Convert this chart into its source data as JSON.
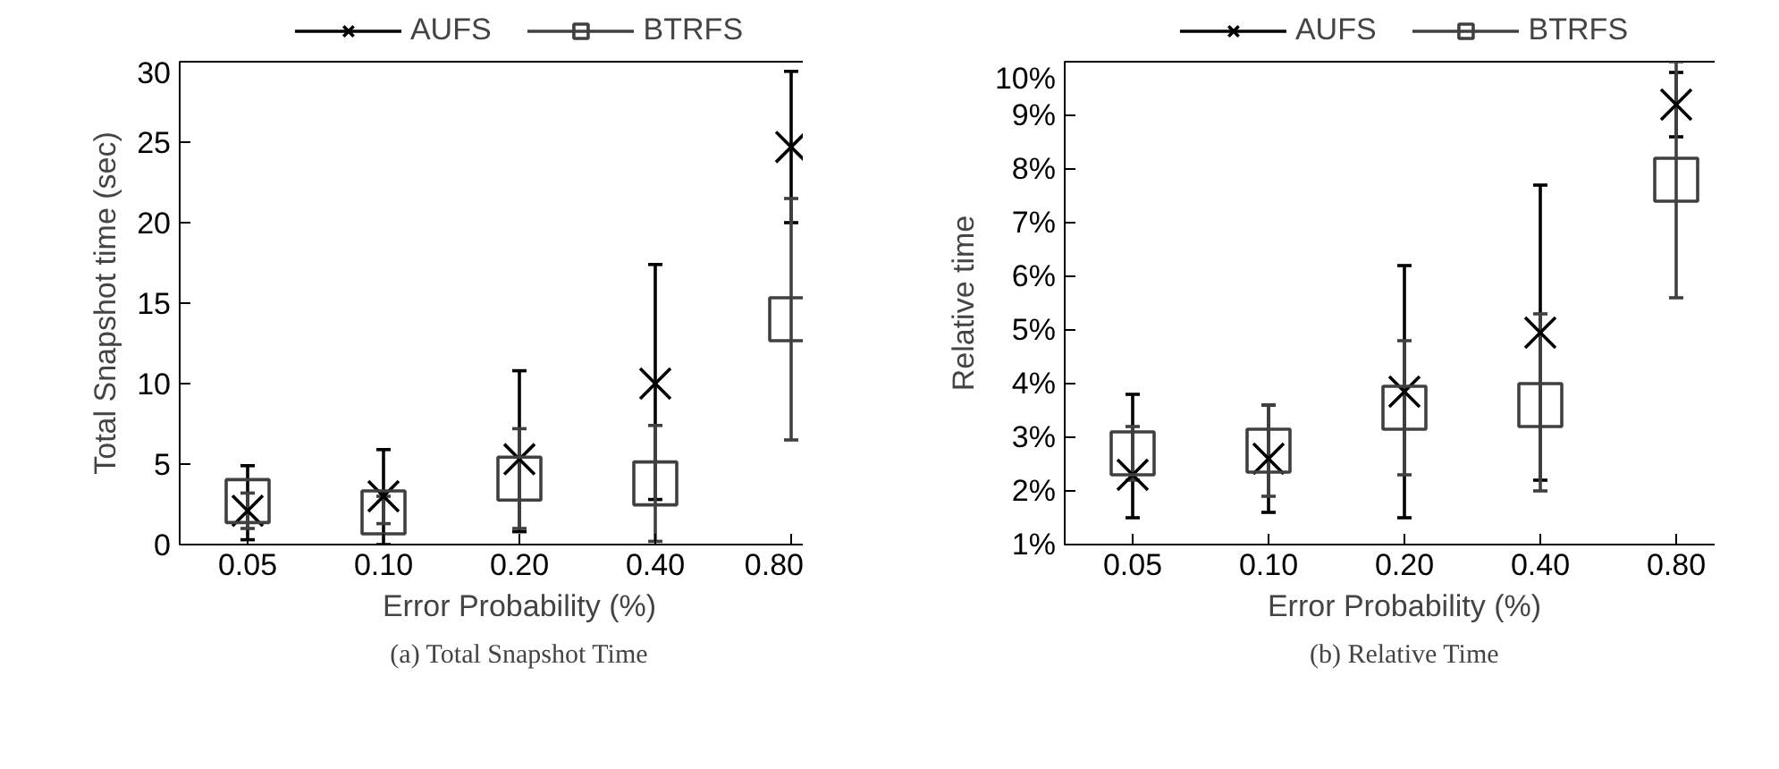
{
  "chart_data": [
    {
      "type": "scatter",
      "xlabel": "Error Probability (%)",
      "ylabel": "Total Snapshot time (sec)",
      "categories": [
        "0.05",
        "0.10",
        "0.20",
        "0.40",
        "0.80"
      ],
      "ylim": [
        0,
        30
      ],
      "yticks": [
        0,
        5,
        10,
        15,
        20,
        25,
        30
      ],
      "grid": false,
      "legend": "top",
      "annotations": [
        "(a) Total Snapshot Time"
      ],
      "series": [
        {
          "name": "AUFS",
          "color": "#000000",
          "marker": "cross",
          "values": [
            2.1,
            3.0,
            5.3,
            10.0,
            24.7
          ],
          "errors": [
            [
              0.3,
              4.9
            ],
            [
              0,
              5.9
            ],
            [
              0.8,
              10.8
            ],
            [
              2.8,
              17.4
            ],
            [
              20.0,
              29.4
            ]
          ]
        },
        {
          "name": "BTRFS",
          "color": "#404040",
          "marker": "square",
          "values": [
            2.7,
            2.0,
            4.1,
            3.8,
            14.0
          ],
          "errors": [
            [
              1.0,
              3.2
            ],
            [
              1.3,
              3.0
            ],
            [
              1.0,
              7.2
            ],
            [
              0.2,
              7.4
            ],
            [
              6.5,
              21.5
            ]
          ]
        }
      ]
    },
    {
      "type": "scatter",
      "xlabel": "Error Probability (%)",
      "ylabel": "Relative time",
      "categories": [
        "0.05",
        "0.10",
        "0.20",
        "0.40",
        "0.80"
      ],
      "ylim": [
        1,
        10
      ],
      "yticks": [
        {
          "value": 1,
          "label": "1%"
        },
        {
          "value": 2,
          "label": "2%"
        },
        {
          "value": 3,
          "label": "3%"
        },
        {
          "value": 4,
          "label": "4%"
        },
        {
          "value": 5,
          "label": "5%"
        },
        {
          "value": 6,
          "label": "6%"
        },
        {
          "value": 7,
          "label": "7%"
        },
        {
          "value": 8,
          "label": "8%"
        },
        {
          "value": 9,
          "label": "9%"
        },
        {
          "value": 10,
          "label": "10%"
        }
      ],
      "grid": false,
      "legend": "top",
      "annotations": [
        "(b) Relative Time"
      ],
      "series": [
        {
          "name": "AUFS",
          "color": "#000000",
          "marker": "cross",
          "values": [
            2.3,
            2.6,
            3.85,
            4.95,
            9.2
          ],
          "errors": [
            [
              1.5,
              3.8
            ],
            [
              1.6,
              3.6
            ],
            [
              1.5,
              6.2
            ],
            [
              2.2,
              7.7
            ],
            [
              8.6,
              9.8
            ]
          ]
        },
        {
          "name": "BTRFS",
          "color": "#404040",
          "marker": "square",
          "values": [
            2.7,
            2.75,
            3.55,
            3.6,
            7.8
          ],
          "errors": [
            [
              2.2,
              3.2
            ],
            [
              1.9,
              3.6
            ],
            [
              2.3,
              4.8
            ],
            [
              2.0,
              5.3
            ],
            [
              5.6,
              10.0
            ]
          ]
        }
      ]
    }
  ]
}
